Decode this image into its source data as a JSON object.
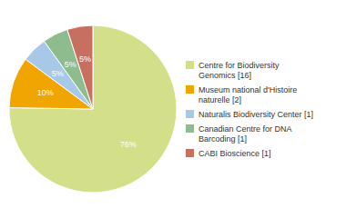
{
  "chart_data": {
    "type": "pie",
    "categories": [
      "Centre for Biodiversity\nGenomics [16]",
      "Museum national d'Histoire\nnaturelle [2]",
      "Naturalis Biodiversity Center [1]",
      "Canadian Centre for DNA\nBarcoding [1]",
      "CABI Bioscience [1]"
    ],
    "values": [
      76,
      10,
      5,
      5,
      5
    ],
    "value_labels": [
      "76%",
      "10%",
      "5%",
      "5%",
      "5%"
    ],
    "colors": [
      "#d4df8a",
      "#f0a500",
      "#a8c8e8",
      "#8fbc8f",
      "#c87060"
    ],
    "data_labels": true,
    "legend": "right"
  }
}
